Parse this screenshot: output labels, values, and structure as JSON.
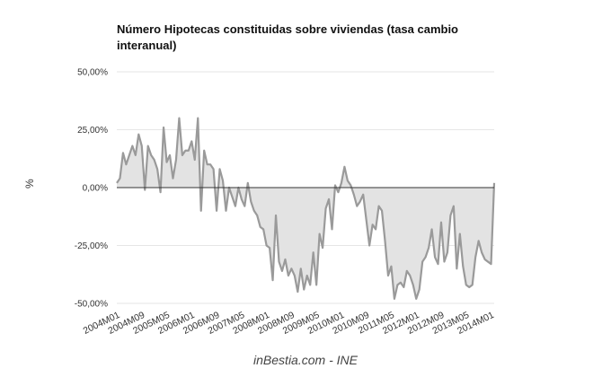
{
  "chart_data": {
    "type": "area",
    "title": "Número Hipotecas constituidas sobre viviendas (tasa cambio interanual)",
    "ylabel": "%",
    "xlabel": "",
    "source": "inBestia.com - INE",
    "ylim": [
      -50,
      50
    ],
    "yticks": [
      50,
      25,
      0,
      -25,
      -50
    ],
    "ytick_labels": [
      "50,00%",
      "25,00%",
      "0,00%",
      "-25,00%",
      "-50,00%"
    ],
    "xtick_labels": [
      "2004M01",
      "2004M09",
      "2005M05",
      "2006M01",
      "2006M09",
      "2007M05",
      "2008M01",
      "2008M09",
      "2009M05",
      "2010M01",
      "2010M09",
      "2011M05",
      "2012M01",
      "2012M09",
      "2013M05",
      "2014M01"
    ],
    "grid": true,
    "colors": {
      "line": "#9a9a9a",
      "fill": "#e3e3e3",
      "zero_line": "#333333",
      "grid": "#e6e6e6"
    },
    "series": [
      {
        "values": [
          2,
          4,
          15,
          10,
          14,
          18,
          14,
          23,
          18,
          -1,
          18,
          14,
          12,
          8,
          -2,
          26,
          11,
          14,
          4,
          12,
          30,
          14,
          16,
          16,
          20,
          12,
          30,
          -10,
          16,
          10,
          10,
          8,
          -10,
          8,
          3,
          -10,
          0,
          -4,
          -8,
          0,
          -5,
          -8,
          2,
          -6,
          -10,
          -12,
          -17,
          -18,
          -25,
          -26,
          -40,
          -12,
          -32,
          -36,
          -31,
          -38,
          -35,
          -38,
          -45,
          -35,
          -44,
          -38,
          -42,
          -28,
          -42,
          -20,
          -26,
          -9,
          -5,
          -18,
          1,
          -2,
          2,
          9,
          3,
          1,
          -3,
          -8,
          -6,
          -3,
          -14,
          -25,
          -16,
          -18,
          -8,
          -10,
          -23,
          -38,
          -34,
          -48,
          -42,
          -41,
          -43,
          -36,
          -38,
          -42,
          -48,
          -44,
          -32,
          -30,
          -26,
          -18,
          -30,
          -33,
          -15,
          -32,
          -28,
          -12,
          -8,
          -35,
          -20,
          -34,
          -42,
          -43,
          -42,
          -30,
          -23,
          -28,
          -31,
          -32,
          -33,
          2
        ]
      }
    ]
  }
}
